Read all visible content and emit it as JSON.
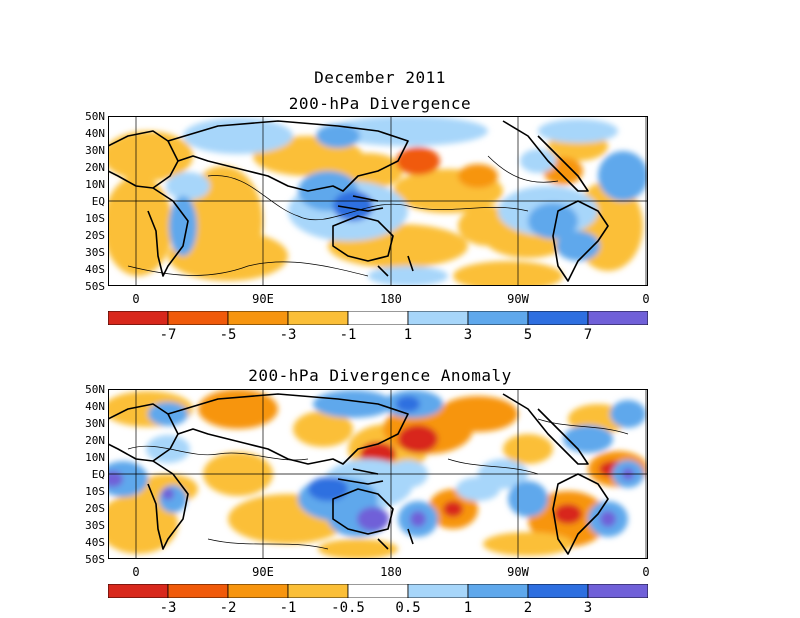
{
  "main_title": "December 2011",
  "panels": [
    {
      "title": "200-hPa Divergence",
      "colorbar": {
        "colors": [
          "#d8281c",
          "#f05a0a",
          "#f7950f",
          "#fbbf38",
          "#ffffff",
          "#a7d6fa",
          "#5fa8ec",
          "#2e6fe0",
          "#7060d8"
        ],
        "labels": [
          "-7",
          "-5",
          "-3",
          "-1",
          "1",
          "3",
          "5",
          "7"
        ]
      }
    },
    {
      "title": "200-hPa Divergence Anomaly",
      "colorbar": {
        "colors": [
          "#d8281c",
          "#f05a0a",
          "#f7950f",
          "#fbbf38",
          "#ffffff",
          "#a7d6fa",
          "#5fa8ec",
          "#2e6fe0",
          "#7060d8"
        ],
        "labels": [
          "-3",
          "-2",
          "-1",
          "-0.5",
          "0.5",
          "1",
          "2",
          "3"
        ]
      }
    }
  ],
  "lat_labels": [
    "50N",
    "40N",
    "30N",
    "20N",
    "10N",
    "EQ",
    "10S",
    "20S",
    "30S",
    "40S",
    "50S"
  ],
  "lon_labels": [
    "0",
    "90E",
    "180",
    "90W",
    "0"
  ]
}
